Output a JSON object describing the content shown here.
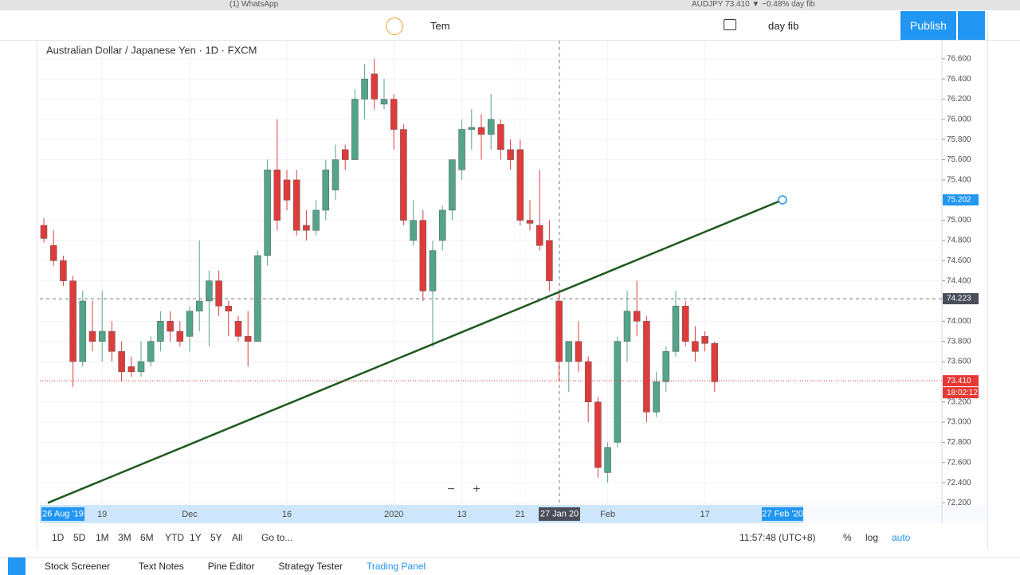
{
  "ui": {
    "window_title": "(1) WhatsApp",
    "ticker_title": "AUDJPY 73.410 ▼ −0.48% day fib",
    "toolbar_template": "Tem",
    "toolbar_layout": "day fib",
    "publish": "Publish",
    "ranges": [
      "1D",
      "5D",
      "1M",
      "3M",
      "6M",
      "YTD",
      "1Y",
      "5Y",
      "All"
    ],
    "goto": "Go to...",
    "clock": "11:57:48 (UTC+8)",
    "scale_options": [
      "%",
      "log",
      "auto"
    ],
    "tabs": [
      "Stock Screener",
      "Text Notes",
      "Pine Editor",
      "Strategy Tester",
      "Trading Panel"
    ],
    "range_start": "26 Aug '19",
    "crosshair_date": "27 Jan 20",
    "range_end": "27 Feb '20",
    "countdown": "18:02:12"
  },
  "chart_data": {
    "type": "candlestick",
    "title": "Australian Dollar / Japanese Yen · 1D · FXCM",
    "up_color": "#53a58a",
    "down_color": "#e03b3b",
    "categories": [
      null,
      null,
      null,
      null,
      null,
      null,
      "19",
      null,
      null,
      null,
      null,
      null,
      null,
      null,
      null,
      "Dec",
      null,
      null,
      null,
      null,
      null,
      null,
      null,
      null,
      null,
      "16",
      null,
      null,
      null,
      null,
      null,
      null,
      null,
      null,
      null,
      null,
      "2020",
      null,
      null,
      null,
      null,
      null,
      null,
      "13",
      null,
      null,
      null,
      null,
      null,
      "21",
      null,
      null,
      null,
      null,
      null,
      null,
      null,
      null,
      "Feb",
      null,
      null,
      null,
      null,
      null,
      null,
      null,
      null,
      null,
      "17",
      null
    ],
    "open": [
      74.95,
      74.75,
      74.6,
      74.4,
      73.6,
      73.9,
      73.8,
      73.9,
      73.7,
      73.55,
      73.5,
      73.6,
      73.8,
      74.0,
      73.9,
      73.85,
      74.1,
      74.2,
      74.4,
      74.15,
      74.0,
      73.85,
      73.8,
      74.65,
      75.5,
      75.4,
      75.4,
      74.95,
      74.9,
      75.1,
      75.3,
      75.7,
      75.6,
      76.2,
      76.45,
      76.15,
      76.2,
      75.9,
      74.8,
      75.0,
      74.3,
      74.8,
      75.1,
      75.5,
      75.9,
      75.92,
      75.85,
      75.95,
      75.7,
      75.7,
      75.0,
      74.95,
      74.8,
      74.2,
      73.6,
      73.8,
      73.6,
      73.2,
      72.5,
      72.8,
      73.8,
      74.1,
      74.0,
      73.1,
      73.4,
      73.7,
      74.15,
      73.8,
      73.85,
      73.78
    ],
    "high": [
      75.02,
      74.9,
      74.65,
      74.45,
      74.3,
      74.2,
      74.3,
      74.0,
      73.8,
      73.65,
      73.8,
      73.85,
      74.1,
      74.1,
      74.0,
      74.15,
      74.8,
      74.5,
      74.5,
      74.2,
      74.05,
      74.1,
      74.7,
      75.6,
      76.0,
      75.5,
      75.5,
      75.1,
      75.2,
      75.6,
      75.75,
      75.75,
      76.3,
      76.55,
      76.6,
      76.4,
      76.25,
      75.95,
      75.2,
      75.1,
      74.8,
      75.15,
      75.6,
      76.0,
      76.1,
      76.05,
      76.25,
      76.0,
      75.8,
      75.8,
      75.2,
      75.5,
      75.0,
      74.3,
      73.8,
      74.0,
      73.65,
      73.25,
      72.8,
      73.85,
      74.3,
      74.4,
      74.05,
      73.5,
      73.75,
      74.3,
      74.2,
      73.95,
      73.9,
      73.8
    ],
    "low": [
      74.78,
      74.55,
      74.35,
      73.35,
      73.55,
      73.7,
      73.6,
      73.6,
      73.4,
      73.45,
      73.45,
      73.55,
      73.7,
      73.8,
      73.75,
      73.7,
      73.9,
      73.75,
      74.05,
      73.85,
      73.8,
      73.55,
      73.8,
      74.55,
      74.9,
      75.1,
      74.85,
      74.8,
      74.85,
      75.0,
      75.2,
      75.5,
      75.6,
      76.0,
      76.1,
      76.1,
      75.7,
      74.95,
      74.75,
      74.2,
      73.75,
      74.7,
      75.0,
      75.4,
      75.7,
      75.6,
      75.7,
      75.6,
      75.5,
      74.95,
      74.9,
      74.7,
      74.3,
      73.4,
      73.3,
      73.5,
      73.0,
      72.45,
      72.4,
      72.75,
      73.6,
      73.85,
      73.0,
      73.05,
      73.3,
      73.65,
      73.75,
      73.6,
      73.7,
      73.3
    ],
    "close": [
      74.82,
      74.6,
      74.4,
      73.6,
      74.2,
      73.8,
      73.9,
      73.7,
      73.5,
      73.5,
      73.6,
      73.8,
      74.0,
      73.9,
      73.8,
      74.1,
      74.2,
      74.4,
      74.15,
      74.1,
      73.85,
      73.8,
      74.65,
      75.5,
      75.0,
      75.2,
      74.9,
      74.9,
      75.1,
      75.5,
      75.6,
      75.6,
      76.2,
      76.4,
      76.2,
      76.2,
      75.9,
      75.0,
      75.0,
      74.3,
      74.7,
      75.1,
      75.6,
      75.9,
      75.92,
      75.85,
      76.0,
      75.7,
      75.6,
      75.0,
      74.97,
      74.75,
      74.4,
      73.6,
      73.8,
      73.6,
      73.2,
      72.55,
      72.75,
      73.8,
      74.1,
      74.0,
      73.1,
      73.4,
      73.7,
      74.15,
      73.8,
      73.7,
      73.78,
      73.4
    ],
    "ylim": [
      72.18,
      76.78
    ],
    "yticks": [
      {
        "value": 72.2,
        "label": "72.200"
      },
      {
        "value": 72.4,
        "label": "72.400"
      },
      {
        "value": 72.6,
        "label": "72.600"
      },
      {
        "value": 72.8,
        "label": "72.800"
      },
      {
        "value": 73.0,
        "label": "73.000"
      },
      {
        "value": 73.2,
        "label": "73.200"
      },
      {
        "value": 73.6,
        "label": "73.600"
      },
      {
        "value": 73.8,
        "label": "73.800"
      },
      {
        "value": 74.0,
        "label": "74.000"
      },
      {
        "value": 74.4,
        "label": "74.400"
      },
      {
        "value": 74.6,
        "label": "74.600"
      },
      {
        "value": 74.8,
        "label": "74.800"
      },
      {
        "value": 75.0,
        "label": "75.000"
      },
      {
        "value": 75.4,
        "label": "75.400"
      },
      {
        "value": 75.6,
        "label": "75.600"
      },
      {
        "value": 75.8,
        "label": "75.800"
      },
      {
        "value": 76.0,
        "label": "76.000"
      },
      {
        "value": 76.2,
        "label": "76.200"
      },
      {
        "value": 76.4,
        "label": "76.400"
      },
      {
        "value": 76.6,
        "label": "76.600"
      }
    ],
    "grid": true,
    "price_markers": [
      {
        "value": 75.202,
        "label": "75.202",
        "color": "#2196f3"
      },
      {
        "value": 74.223,
        "label": "74.223",
        "color": "#4a4e5a"
      },
      {
        "value": 73.41,
        "label": "73.410",
        "color": "#e53935"
      }
    ],
    "trend_line": {
      "start": 72.2,
      "color": "#1e5a1e"
    }
  }
}
